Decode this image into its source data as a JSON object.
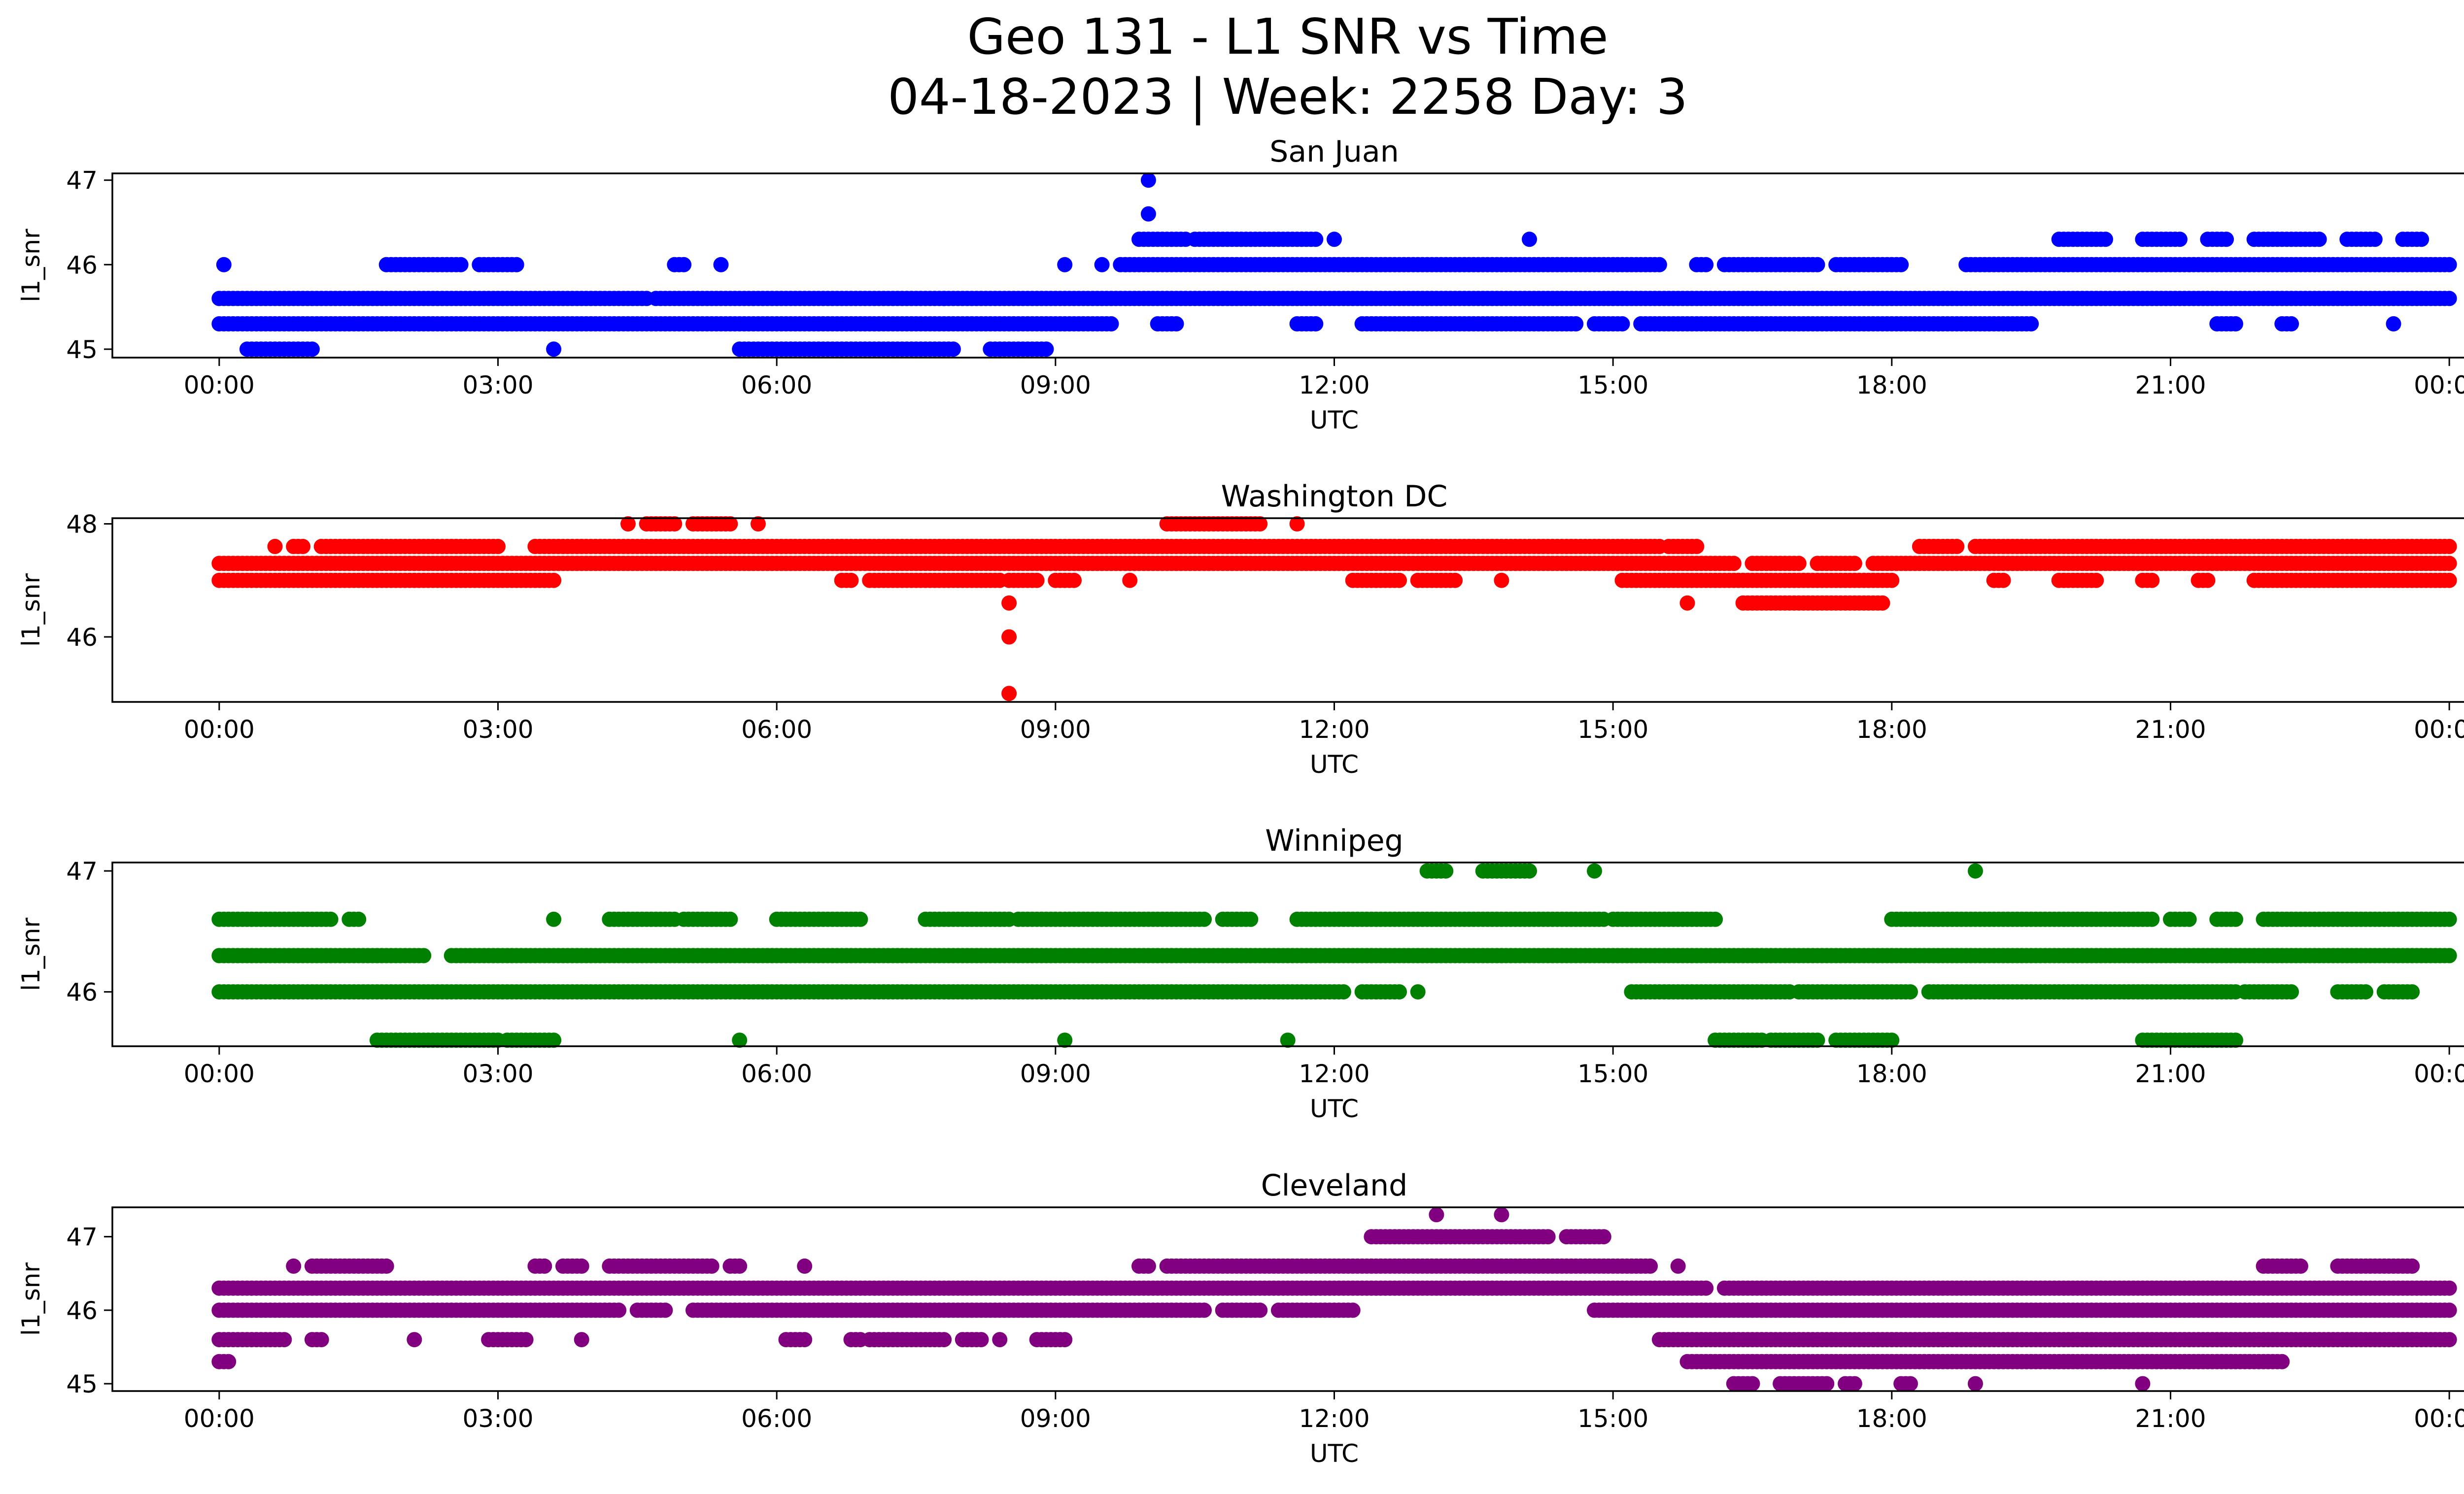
{
  "figure": {
    "title_line1": "Geo 131 - L1 SNR vs Time",
    "title_line2": "04-18-2023 | Week: 2258 Day: 3"
  },
  "chart_data": [
    {
      "type": "scatter",
      "title": "San Juan",
      "xlabel": "UTC",
      "ylabel": "l1_snr",
      "color": "#0000ff",
      "x_ticks": [
        "00:00",
        "03:00",
        "06:00",
        "09:00",
        "12:00",
        "15:00",
        "18:00",
        "21:00",
        "00:00"
      ],
      "y_ticks": [
        45,
        46,
        47
      ],
      "xlim_hours": [
        -1.15,
        25.15
      ],
      "ylim": [
        44.9,
        47.08
      ],
      "levels": [
        {
          "y": 47.0,
          "runs": [
            [
              10.0,
              10.0
            ]
          ]
        },
        {
          "y": 46.6,
          "runs": [
            [
              10.0,
              10.0
            ]
          ]
        },
        {
          "y": 46.3,
          "runs": [
            [
              9.9,
              10.4
            ],
            [
              10.5,
              11.8
            ],
            [
              12.0,
              12.0
            ],
            [
              14.1,
              14.1
            ],
            [
              19.8,
              20.3
            ],
            [
              20.7,
              21.1
            ],
            [
              21.4,
              21.6
            ],
            [
              21.9,
              22.6
            ],
            [
              22.9,
              23.2
            ],
            [
              23.5,
              23.7
            ]
          ]
        },
        {
          "y": 46.0,
          "runs": [
            [
              0.05,
              0.05
            ],
            [
              1.8,
              2.6
            ],
            [
              2.8,
              3.2
            ],
            [
              4.9,
              5.0
            ],
            [
              5.4,
              5.4
            ],
            [
              9.1,
              9.1
            ],
            [
              9.5,
              9.5
            ],
            [
              9.7,
              15.5
            ],
            [
              15.9,
              16.0
            ],
            [
              16.2,
              17.2
            ],
            [
              17.4,
              18.1
            ],
            [
              18.8,
              24.0
            ]
          ]
        },
        {
          "y": 45.6,
          "runs": [
            [
              0.0,
              4.6
            ],
            [
              4.7,
              7.8
            ],
            [
              7.8,
              24.0
            ]
          ]
        },
        {
          "y": 45.3,
          "runs": [
            [
              0.0,
              9.6
            ],
            [
              10.1,
              10.3
            ],
            [
              11.6,
              11.8
            ],
            [
              12.3,
              14.6
            ],
            [
              14.8,
              15.1
            ],
            [
              15.3,
              19.5
            ],
            [
              21.5,
              21.7
            ],
            [
              22.2,
              22.3
            ],
            [
              23.4,
              23.4
            ]
          ]
        },
        {
          "y": 45.0,
          "runs": [
            [
              0.3,
              1.0
            ],
            [
              3.6,
              3.6
            ],
            [
              5.6,
              7.9
            ],
            [
              8.3,
              8.9
            ]
          ]
        }
      ]
    },
    {
      "type": "scatter",
      "title": "Washington DC",
      "xlabel": "UTC",
      "ylabel": "l1_snr",
      "color": "#ff0000",
      "x_ticks": [
        "00:00",
        "03:00",
        "06:00",
        "09:00",
        "12:00",
        "15:00",
        "18:00",
        "21:00",
        "00:00"
      ],
      "y_ticks": [
        46,
        48
      ],
      "xlim_hours": [
        -1.15,
        25.15
      ],
      "ylim": [
        44.85,
        48.1
      ],
      "levels": [
        {
          "y": 48.0,
          "runs": [
            [
              4.4,
              4.4
            ],
            [
              4.6,
              4.9
            ],
            [
              5.1,
              5.5
            ],
            [
              5.8,
              5.8
            ],
            [
              10.2,
              11.2
            ],
            [
              11.6,
              11.6
            ]
          ]
        },
        {
          "y": 47.6,
          "runs": [
            [
              0.6,
              0.6
            ],
            [
              0.8,
              0.9
            ],
            [
              1.1,
              3.0
            ],
            [
              3.4,
              15.5
            ],
            [
              15.6,
              15.9
            ],
            [
              18.3,
              18.7
            ],
            [
              18.9,
              24.0
            ]
          ]
        },
        {
          "y": 47.3,
          "runs": [
            [
              0.0,
              16.3
            ],
            [
              16.5,
              17.0
            ],
            [
              17.2,
              17.6
            ],
            [
              17.8,
              24.0
            ]
          ]
        },
        {
          "y": 47.0,
          "runs": [
            [
              0.0,
              3.6
            ],
            [
              6.7,
              6.8
            ],
            [
              7.0,
              8.4
            ],
            [
              8.5,
              8.8
            ],
            [
              9.0,
              9.2
            ],
            [
              9.8,
              9.8
            ],
            [
              12.2,
              12.7
            ],
            [
              12.9,
              13.3
            ],
            [
              13.8,
              13.8
            ],
            [
              15.1,
              18.0
            ],
            [
              19.1,
              19.2
            ],
            [
              19.8,
              20.2
            ],
            [
              20.7,
              20.8
            ],
            [
              21.3,
              21.4
            ],
            [
              21.9,
              24.0
            ]
          ]
        },
        {
          "y": 46.6,
          "runs": [
            [
              8.5,
              8.5
            ],
            [
              15.8,
              15.8
            ],
            [
              16.4,
              17.9
            ]
          ]
        },
        {
          "y": 46.0,
          "runs": [
            [
              8.5,
              8.5
            ]
          ]
        },
        {
          "y": 45.0,
          "runs": [
            [
              8.5,
              8.5
            ]
          ]
        }
      ]
    },
    {
      "type": "scatter",
      "title": "Winnipeg",
      "xlabel": "UTC",
      "ylabel": "l1_snr",
      "color": "#008000",
      "x_ticks": [
        "00:00",
        "03:00",
        "06:00",
        "09:00",
        "12:00",
        "15:00",
        "18:00",
        "21:00",
        "00:00"
      ],
      "y_ticks": [
        46,
        47
      ],
      "xlim_hours": [
        -1.15,
        25.15
      ],
      "ylim": [
        45.55,
        47.07
      ],
      "levels": [
        {
          "y": 47.0,
          "runs": [
            [
              13.0,
              13.2
            ],
            [
              13.6,
              14.1
            ],
            [
              14.8,
              14.8
            ],
            [
              18.9,
              18.9
            ]
          ]
        },
        {
          "y": 46.6,
          "runs": [
            [
              0.0,
              1.2
            ],
            [
              1.4,
              1.5
            ],
            [
              3.6,
              3.6
            ],
            [
              4.2,
              4.9
            ],
            [
              5.0,
              5.5
            ],
            [
              6.0,
              6.9
            ],
            [
              7.6,
              8.5
            ],
            [
              8.6,
              10.6
            ],
            [
              10.8,
              11.1
            ],
            [
              11.6,
              14.9
            ],
            [
              15.0,
              16.1
            ],
            [
              18.0,
              20.8
            ],
            [
              21.0,
              21.2
            ],
            [
              21.5,
              21.7
            ],
            [
              22.0,
              24.0
            ]
          ]
        },
        {
          "y": 46.3,
          "runs": [
            [
              0.0,
              2.2
            ],
            [
              2.5,
              24.0
            ]
          ]
        },
        {
          "y": 46.0,
          "runs": [
            [
              0.0,
              12.1
            ],
            [
              12.3,
              12.7
            ],
            [
              12.9,
              12.9
            ],
            [
              15.2,
              16.9
            ],
            [
              17.0,
              18.2
            ],
            [
              18.4,
              21.7
            ],
            [
              21.8,
              22.3
            ],
            [
              22.8,
              23.1
            ],
            [
              23.3,
              23.6
            ]
          ]
        },
        {
          "y": 45.6,
          "runs": [
            [
              1.7,
              3.0
            ],
            [
              3.1,
              3.6
            ],
            [
              5.6,
              5.6
            ],
            [
              9.1,
              9.1
            ],
            [
              11.5,
              11.5
            ],
            [
              16.1,
              16.6
            ],
            [
              16.7,
              17.2
            ],
            [
              17.4,
              18.0
            ],
            [
              20.7,
              21.7
            ]
          ]
        }
      ]
    },
    {
      "type": "scatter",
      "title": "Cleveland",
      "xlabel": "UTC",
      "ylabel": "l1_snr",
      "color": "#800080",
      "x_ticks": [
        "00:00",
        "03:00",
        "06:00",
        "09:00",
        "12:00",
        "15:00",
        "18:00",
        "21:00",
        "00:00"
      ],
      "y_ticks": [
        45,
        46,
        47
      ],
      "xlim_hours": [
        -1.15,
        25.15
      ],
      "ylim": [
        44.9,
        47.4
      ],
      "levels": [
        {
          "y": 47.3,
          "runs": [
            [
              13.1,
              13.1
            ],
            [
              13.8,
              13.8
            ]
          ]
        },
        {
          "y": 47.0,
          "runs": [
            [
              12.4,
              14.3
            ],
            [
              14.5,
              14.9
            ]
          ]
        },
        {
          "y": 46.6,
          "runs": [
            [
              0.8,
              0.8
            ],
            [
              1.0,
              1.8
            ],
            [
              3.4,
              3.5
            ],
            [
              3.7,
              3.9
            ],
            [
              4.2,
              5.3
            ],
            [
              5.5,
              5.6
            ],
            [
              6.3,
              6.3
            ],
            [
              9.9,
              10.0
            ],
            [
              10.2,
              15.4
            ],
            [
              15.7,
              15.7
            ],
            [
              22.0,
              22.4
            ],
            [
              22.8,
              23.6
            ]
          ]
        },
        {
          "y": 46.3,
          "runs": [
            [
              0.0,
              16.0
            ],
            [
              16.2,
              24.0
            ]
          ]
        },
        {
          "y": 46.0,
          "runs": [
            [
              0.0,
              4.3
            ],
            [
              4.5,
              4.8
            ],
            [
              5.1,
              10.6
            ],
            [
              10.8,
              11.2
            ],
            [
              11.4,
              12.2
            ],
            [
              14.8,
              24.0
            ]
          ]
        },
        {
          "y": 45.6,
          "runs": [
            [
              0.0,
              0.7
            ],
            [
              1.0,
              1.1
            ],
            [
              2.1,
              2.1
            ],
            [
              2.9,
              3.3
            ],
            [
              3.9,
              3.9
            ],
            [
              6.1,
              6.3
            ],
            [
              6.8,
              6.9
            ],
            [
              7.0,
              7.8
            ],
            [
              8.0,
              8.2
            ],
            [
              8.4,
              8.4
            ],
            [
              8.8,
              9.1
            ],
            [
              15.5,
              24.0
            ]
          ]
        },
        {
          "y": 45.3,
          "runs": [
            [
              0.0,
              0.1
            ],
            [
              15.8,
              22.2
            ]
          ]
        },
        {
          "y": 45.0,
          "runs": [
            [
              16.3,
              16.5
            ],
            [
              16.8,
              17.3
            ],
            [
              17.5,
              17.6
            ],
            [
              18.1,
              18.2
            ],
            [
              18.9,
              18.9
            ],
            [
              20.7,
              20.7
            ]
          ]
        }
      ]
    }
  ]
}
